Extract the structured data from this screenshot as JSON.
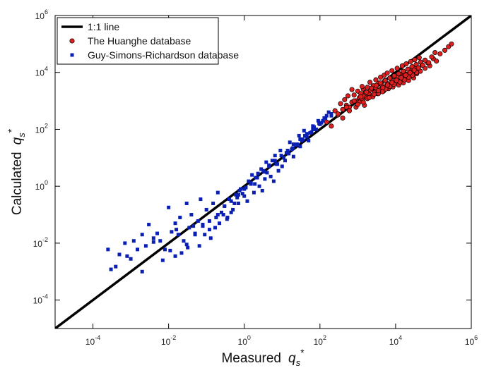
{
  "chart_data": {
    "type": "scatter",
    "title": "",
    "xlabel": "Measured",
    "ylabel": "Calculated",
    "label_symbol": {
      "base": "q",
      "sub": "s",
      "sup": "*"
    },
    "xscale": "log",
    "yscale": "log",
    "xlim": [
      1e-05,
      1000000.0
    ],
    "ylim": [
      1e-05,
      1000000.0
    ],
    "x_ticks": [
      {
        "value": 0.0001,
        "base": "10",
        "exp": "-4"
      },
      {
        "value": 0.01,
        "base": "10",
        "exp": "-2"
      },
      {
        "value": 1,
        "base": "10",
        "exp": "0"
      },
      {
        "value": 100,
        "base": "10",
        "exp": "2"
      },
      {
        "value": 10000,
        "base": "10",
        "exp": "4"
      },
      {
        "value": 1000000,
        "base": "10",
        "exp": "6"
      }
    ],
    "y_ticks": [
      {
        "value": 0.0001,
        "base": "10",
        "exp": "-4"
      },
      {
        "value": 0.01,
        "base": "10",
        "exp": "-2"
      },
      {
        "value": 1,
        "base": "10",
        "exp": "0"
      },
      {
        "value": 100,
        "base": "10",
        "exp": "2"
      },
      {
        "value": 10000,
        "base": "10",
        "exp": "4"
      },
      {
        "value": 1000000,
        "base": "10",
        "exp": "6"
      }
    ],
    "grid": false,
    "legend_position": "top-left",
    "series": [
      {
        "name": "1:1 line",
        "kind": "line",
        "color": "#000000",
        "x": [
          1e-05,
          1000000.0
        ],
        "y": [
          1e-05,
          1000000.0
        ]
      },
      {
        "name": "The Huanghe database",
        "kind": "scatter",
        "marker": "circle",
        "color": "#dd1f1f",
        "edge_color": "#000000",
        "x": [
          150,
          200,
          250,
          300,
          350,
          400,
          450,
          500,
          550,
          600,
          700,
          800,
          900,
          1000,
          1100,
          1200,
          1300,
          1400,
          1500,
          1600,
          1700,
          1800,
          2000,
          2200,
          2400,
          2600,
          2800,
          3000,
          3300,
          3600,
          4000,
          4400,
          4800,
          5200,
          5600,
          6000,
          6500,
          7000,
          7500,
          8000,
          8500,
          9000,
          10000,
          11000,
          12000,
          13000,
          14000,
          15000,
          16000,
          17000,
          18000,
          20000,
          22000,
          24000,
          26000,
          28000,
          30000,
          33000,
          36000,
          40000,
          45000,
          50000,
          60000,
          70000,
          80000,
          100000,
          120000,
          150000,
          200000,
          250000,
          300000,
          700,
          900,
          1100,
          1300,
          1500,
          1800,
          2100,
          2500,
          3000,
          3500,
          4000,
          4500,
          5000,
          5500,
          6000,
          7000,
          8000,
          9000,
          11000,
          13000,
          15000,
          17000,
          19000,
          22000,
          25000,
          28000,
          32000,
          36000,
          42000,
          300,
          400,
          500,
          600,
          800,
          1000,
          1200,
          1400,
          1700,
          2000,
          2300,
          2700,
          3100,
          3500,
          4000,
          4600,
          5300,
          6100,
          7000,
          8000,
          9200,
          10500,
          12000,
          14000,
          16000,
          18500,
          21000,
          24000,
          27000,
          31000,
          35000,
          40000,
          46000,
          52000,
          60000,
          75000,
          90000,
          110000
        ],
        "y": [
          180,
          130,
          450,
          320,
          800,
          500,
          1100,
          700,
          1500,
          600,
          900,
          1600,
          1000,
          2200,
          1300,
          1800,
          1100,
          2600,
          1500,
          2000,
          1300,
          3000,
          1700,
          2400,
          1500,
          3400,
          2000,
          2900,
          1800,
          4200,
          2600,
          3500,
          2200,
          5200,
          3100,
          4100,
          2700,
          6300,
          3600,
          5000,
          3100,
          7200,
          4200,
          6500,
          3600,
          8800,
          5000,
          7000,
          4300,
          9500,
          6000,
          8500,
          5200,
          12000,
          7400,
          10500,
          6400,
          15000,
          9000,
          13000,
          11000,
          18000,
          14000,
          22000,
          17000,
          30000,
          25000,
          45000,
          60000,
          80000,
          100000,
          2500,
          600,
          900,
          3200,
          700,
          1200,
          4500,
          1400,
          5500,
          1800,
          6800,
          2100,
          8000,
          2600,
          9500,
          3200,
          11500,
          3800,
          14000,
          4600,
          17000,
          5500,
          20000,
          6800,
          24000,
          8000,
          28000,
          10000,
          33000,
          350,
          250,
          600,
          450,
          1000,
          750,
          1400,
          900,
          2000,
          1300,
          2800,
          1700,
          3500,
          2300,
          4300,
          2900,
          5200,
          3600,
          6300,
          4400,
          7600,
          5300,
          9000,
          6500,
          11000,
          8000,
          13000,
          9800,
          16000,
          12000,
          19000,
          14500,
          23000,
          18000,
          27000,
          22000,
          35000,
          50000
        ]
      },
      {
        "name": "Guy-Simons-Richardson database",
        "kind": "scatter",
        "marker": "square",
        "color": "#0a1fb4",
        "x": [
          0.00025,
          0.0003,
          0.0005,
          0.0007,
          0.001,
          0.0012,
          0.0015,
          0.002,
          0.0025,
          0.003,
          0.004,
          0.005,
          0.006,
          0.008,
          0.01,
          0.012,
          0.015,
          0.018,
          0.02,
          0.025,
          0.03,
          0.035,
          0.04,
          0.05,
          0.06,
          0.07,
          0.08,
          0.1,
          0.12,
          0.15,
          0.18,
          0.2,
          0.25,
          0.3,
          0.35,
          0.4,
          0.5,
          0.6,
          0.7,
          0.8,
          1,
          1.2,
          1.5,
          1.8,
          2,
          2.5,
          3,
          3.5,
          4,
          5,
          6,
          7,
          8,
          10,
          12,
          15,
          18,
          20,
          25,
          30,
          35,
          40,
          50,
          60,
          70,
          80,
          100,
          120,
          150,
          0.0004,
          0.0008,
          0.002,
          0.004,
          0.007,
          0.011,
          0.016,
          0.022,
          0.032,
          0.045,
          0.065,
          0.09,
          0.13,
          0.17,
          0.22,
          0.28,
          0.36,
          0.45,
          0.55,
          0.65,
          0.75,
          0.9,
          1.1,
          1.3,
          1.6,
          1.9,
          2.3,
          2.8,
          3.3,
          3.8,
          4.5,
          5.5,
          6.5,
          7.5,
          9,
          11,
          13,
          16,
          19,
          23,
          28,
          33,
          38,
          45,
          55,
          65,
          75,
          90,
          110,
          130,
          170,
          200,
          0.015,
          0.03,
          0.05,
          0.08,
          0.12,
          0.2,
          0.3,
          0.45,
          0.7,
          1,
          1.5,
          2.2,
          3.2,
          4.5,
          6.5,
          9.5,
          14,
          20,
          30,
          45,
          65,
          95,
          140,
          200
        ],
        "y": [
          0.006,
          0.0012,
          0.004,
          0.01,
          0.0028,
          0.012,
          0.006,
          0.02,
          0.008,
          0.045,
          0.015,
          0.022,
          0.012,
          0.006,
          0.18,
          0.025,
          0.05,
          0.02,
          0.08,
          0.012,
          0.25,
          0.035,
          0.1,
          0.022,
          0.06,
          0.35,
          0.045,
          0.15,
          0.03,
          0.25,
          0.08,
          0.6,
          0.12,
          0.2,
          0.07,
          0.35,
          0.15,
          0.5,
          0.25,
          0.8,
          0.45,
          0.3,
          1.2,
          0.6,
          2,
          1,
          0.7,
          1.8,
          3,
          2.2,
          1.5,
          6,
          3.5,
          5,
          8,
          14,
          20,
          11,
          30,
          25,
          45,
          60,
          40,
          80,
          120,
          100,
          150,
          200,
          300,
          0.0015,
          0.0035,
          0.001,
          0.011,
          0.0025,
          0.0055,
          0.03,
          0.0045,
          0.007,
          0.04,
          0.008,
          0.02,
          0.015,
          0.035,
          0.05,
          0.1,
          0.08,
          0.12,
          0.25,
          0.4,
          0.7,
          0.55,
          0.9,
          1.5,
          2.5,
          1.2,
          2.8,
          4,
          3.2,
          7,
          5.5,
          8,
          12,
          6,
          18,
          10,
          15,
          35,
          22,
          28,
          60,
          40,
          90,
          55,
          75,
          130,
          100,
          200,
          170,
          250,
          400,
          300,
          0.0035,
          0.009,
          0.02,
          0.04,
          0.06,
          0.1,
          0.2,
          0.3,
          0.5,
          0.8,
          1.3,
          2,
          3.5,
          5,
          8,
          12,
          18,
          30,
          45,
          70,
          100,
          160,
          250,
          350
        ]
      }
    ]
  }
}
